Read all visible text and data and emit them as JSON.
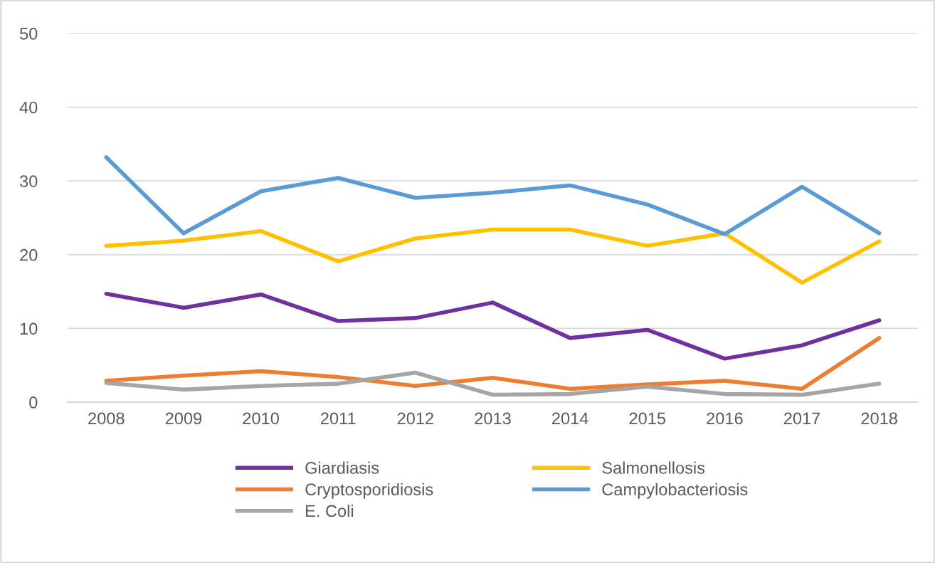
{
  "chart_data": {
    "type": "line",
    "categories": [
      "2008",
      "2009",
      "2010",
      "2011",
      "2012",
      "2013",
      "2014",
      "2015",
      "2016",
      "2017",
      "2018"
    ],
    "series": [
      {
        "name": "Giardiasis",
        "color": "#7030a0",
        "values": [
          14.7,
          12.8,
          14.6,
          11.0,
          11.4,
          13.5,
          8.7,
          9.8,
          5.9,
          7.7,
          11.1
        ]
      },
      {
        "name": "Cryptosporidiosis",
        "color": "#ed7d31",
        "values": [
          2.9,
          3.6,
          4.2,
          3.4,
          2.2,
          3.3,
          1.8,
          2.4,
          2.9,
          1.8,
          8.7
        ]
      },
      {
        "name": "E. Coli",
        "color": "#a5a5a5",
        "values": [
          2.6,
          1.7,
          2.2,
          2.5,
          4.0,
          1.0,
          1.1,
          2.1,
          1.1,
          1.0,
          2.5
        ]
      },
      {
        "name": "Salmonellosis",
        "color": "#ffc000",
        "values": [
          21.2,
          21.9,
          23.2,
          19.1,
          22.2,
          23.4,
          23.4,
          21.2,
          22.9,
          16.2,
          21.8
        ]
      },
      {
        "name": "Campylobacteriosis",
        "color": "#5b9bd5",
        "values": [
          33.2,
          22.9,
          28.6,
          30.4,
          27.7,
          28.4,
          29.4,
          26.8,
          22.8,
          29.2,
          22.9
        ]
      }
    ],
    "ylim": [
      0,
      50
    ],
    "yticks": [
      0,
      10,
      20,
      30,
      40,
      50
    ],
    "grid": "y",
    "legend": "bottom",
    "marker": "none",
    "line_style": "solid"
  }
}
